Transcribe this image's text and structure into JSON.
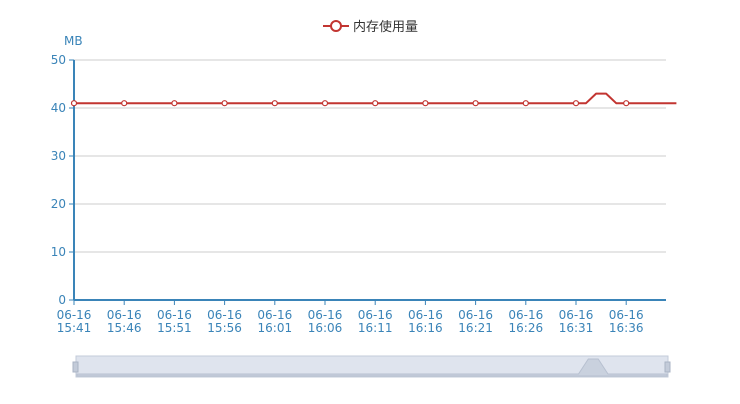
{
  "chart_data": {
    "type": "line",
    "title": "",
    "ylabel": "MB",
    "ylim": [
      0,
      50
    ],
    "yticks": [
      0,
      10,
      20,
      30,
      40,
      50
    ],
    "grid": true,
    "legend": {
      "position": "top-center"
    },
    "x_tick_labels": [
      [
        "06-16",
        "15:41"
      ],
      [
        "06-16",
        "15:46"
      ],
      [
        "06-16",
        "15:51"
      ],
      [
        "06-16",
        "15:56"
      ],
      [
        "06-16",
        "16:01"
      ],
      [
        "06-16",
        "16:06"
      ],
      [
        "06-16",
        "16:11"
      ],
      [
        "06-16",
        "16:16"
      ],
      [
        "06-16",
        "16:21"
      ],
      [
        "06-16",
        "16:26"
      ],
      [
        "06-16",
        "16:31"
      ],
      [
        "06-16",
        "16:36"
      ]
    ],
    "x": [
      "06-16 15:41",
      "06-16 15:46",
      "06-16 15:51",
      "06-16 15:56",
      "06-16 16:01",
      "06-16 16:06",
      "06-16 16:11",
      "06-16 16:16",
      "06-16 16:21",
      "06-16 16:26",
      "06-16 16:31",
      "06-16 16:32",
      "06-16 16:33",
      "06-16 16:34",
      "06-16 16:35",
      "06-16 16:36",
      "06-16 16:41"
    ],
    "x_marker_every": 5,
    "series": [
      {
        "name": "内存使用量",
        "color": "#c23531",
        "values": [
          41,
          41,
          41,
          41,
          41,
          41,
          41,
          41,
          41,
          41,
          41,
          41,
          43,
          43,
          41,
          41,
          41
        ]
      }
    ],
    "colors": {
      "axis": "#3a84b8",
      "grid": "#cccccc",
      "tick_label": "#3a84b8",
      "zoom_track": "#dfe4ee",
      "zoom_border": "#c3cbd9",
      "zoom_fill": "#e8ecf3"
    }
  },
  "zoom_slider": {
    "range_start_percent": 0,
    "range_end_percent": 100
  }
}
